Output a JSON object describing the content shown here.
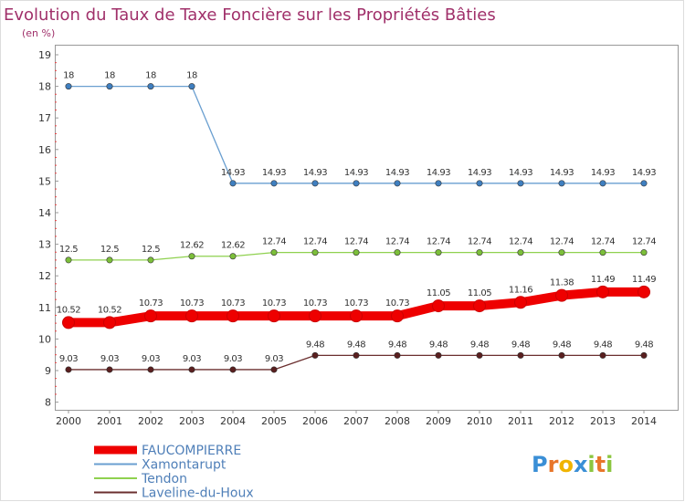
{
  "chart_data": {
    "type": "line",
    "title": "Evolution du Taux de Taxe Foncière sur les Propriétés Bâties",
    "subtitle": "(en %)",
    "xlabel": "",
    "ylabel": "",
    "x": [
      "2000",
      "2001",
      "2002",
      "2003",
      "2004",
      "2005",
      "2006",
      "2007",
      "2008",
      "2009",
      "2010",
      "2011",
      "2012",
      "2013",
      "2014"
    ],
    "ylim": [
      8,
      19
    ],
    "yticks": [
      8,
      9,
      10,
      11,
      12,
      13,
      14,
      15,
      16,
      17,
      18,
      19
    ],
    "grid": false,
    "legend_position": "bottom-left",
    "series": [
      {
        "name": "Xamontarupt",
        "color": "#6a9fd0",
        "marker": "#3f7fc0",
        "values": [
          18,
          18,
          18,
          18,
          14.93,
          14.93,
          14.93,
          14.93,
          14.93,
          14.93,
          14.93,
          14.93,
          14.93,
          14.93,
          14.93
        ],
        "labels": [
          "18",
          "18",
          "18",
          "18",
          "14.93",
          "14.93",
          "14.93",
          "14.93",
          "14.93",
          "14.93",
          "14.93",
          "14.93",
          "14.93",
          "14.93",
          "14.93"
        ]
      },
      {
        "name": "Tendon",
        "color": "#8fd14f",
        "marker": "#7cbf3a",
        "values": [
          12.5,
          12.5,
          12.5,
          12.62,
          12.62,
          12.74,
          12.74,
          12.74,
          12.74,
          12.74,
          12.74,
          12.74,
          12.74,
          12.74,
          12.74
        ],
        "labels": [
          "12.5",
          "12.5",
          "12.5",
          "12.62",
          "12.62",
          "12.74",
          "12.74",
          "12.74",
          "12.74",
          "12.74",
          "12.74",
          "12.74",
          "12.74",
          "12.74",
          "12.74"
        ]
      },
      {
        "name": "Laveline-du-Houx",
        "color": "#6b2f2f",
        "marker": "#5a1f1f",
        "values": [
          9.03,
          9.03,
          9.03,
          9.03,
          9.03,
          9.03,
          9.48,
          9.48,
          9.48,
          9.48,
          9.48,
          9.48,
          9.48,
          9.48,
          9.48
        ],
        "labels": [
          "9.03",
          "9.03",
          "9.03",
          "9.03",
          "9.03",
          "9.03",
          "9.48",
          "9.48",
          "9.48",
          "9.48",
          "9.48",
          "9.48",
          "9.48",
          "9.48",
          "9.48"
        ]
      },
      {
        "name": "FAUCOMPIERRE",
        "color": "#ee0000",
        "marker": "#ee0000",
        "highlight": true,
        "values": [
          10.52,
          10.52,
          10.73,
          10.73,
          10.73,
          10.73,
          10.73,
          10.73,
          10.73,
          11.05,
          11.05,
          11.16,
          11.38,
          11.49,
          11.49
        ],
        "labels": [
          "10.52",
          "10.52",
          "10.73",
          "10.73",
          "10.73",
          "10.73",
          "10.73",
          "10.73",
          "10.73",
          "11.05",
          "11.05",
          "11.16",
          "11.38",
          "11.49",
          "11.49"
        ]
      }
    ],
    "legend_order": [
      "FAUCOMPIERRE",
      "Xamontarupt",
      "Tendon",
      "Laveline-du-Houx"
    ]
  },
  "branding": {
    "logo_letters": [
      "P",
      "r",
      "o",
      "x",
      "i",
      "t",
      "i"
    ],
    "logo_colors": [
      "#3a8fd6",
      "#e8762a",
      "#f0b400",
      "#3a8fd6",
      "#8cc63f",
      "#e8762a",
      "#8cc63f"
    ]
  }
}
